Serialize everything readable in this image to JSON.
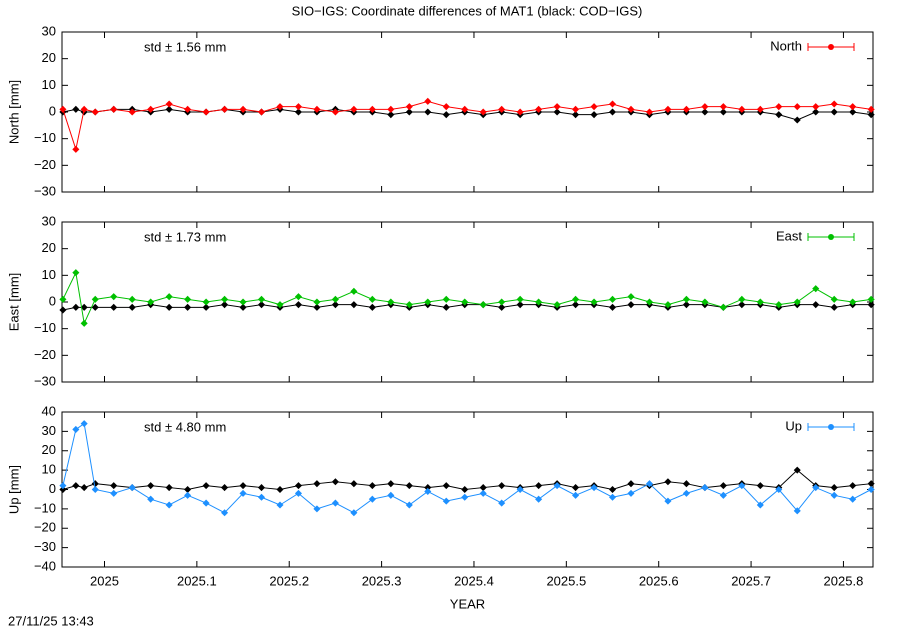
{
  "title": "SIO−IGS: Coordinate differences of MAT1 (black: COD−IGS)",
  "timestamp": "27/11/25 13:43",
  "chart_data": [
    {
      "type": "line",
      "ylabel": "North [mm]",
      "annotation": "std ± 1.56 mm",
      "legend": "upper right",
      "xlim": [
        2024.954,
        2025.832
      ],
      "xticks": [
        2025,
        2025.1,
        2025.2,
        2025.3,
        2025.4,
        2025.5,
        2025.6,
        2025.7,
        2025.8
      ],
      "ylim": [
        -30,
        30
      ],
      "yticks": [
        {
          "value": -30,
          "label": "−30"
        },
        {
          "value": -20,
          "label": "−20"
        },
        {
          "value": -10,
          "label": "−10"
        },
        0,
        10,
        20,
        30
      ],
      "x": [
        2024.955,
        2024.969,
        2024.978,
        2024.99,
        2025.01,
        2025.03,
        2025.05,
        2025.07,
        2025.09,
        2025.11,
        2025.13,
        2025.15,
        2025.17,
        2025.19,
        2025.21,
        2025.23,
        2025.25,
        2025.27,
        2025.29,
        2025.31,
        2025.33,
        2025.35,
        2025.37,
        2025.39,
        2025.41,
        2025.43,
        2025.45,
        2025.47,
        2025.49,
        2025.51,
        2025.53,
        2025.55,
        2025.57,
        2025.59,
        2025.61,
        2025.63,
        2025.65,
        2025.67,
        2025.69,
        2025.71,
        2025.73,
        2025.75,
        2025.77,
        2025.79,
        2025.81,
        2025.83
      ],
      "series": [
        {
          "color": "#000000",
          "values": [
            0,
            1,
            0,
            0,
            1,
            1,
            0,
            1,
            0,
            0,
            1,
            0,
            0,
            1,
            0,
            0,
            1,
            0,
            0,
            -1,
            0,
            0,
            -1,
            0,
            -1,
            0,
            -1,
            0,
            0,
            -1,
            -1,
            0,
            0,
            -1,
            0,
            0,
            0,
            0,
            0,
            0,
            -1,
            -3,
            0,
            0,
            0,
            -1
          ]
        },
        {
          "name": "North",
          "color": "#ff0000",
          "values": [
            1,
            -14,
            1,
            0,
            1,
            0,
            1,
            3,
            1,
            0,
            1,
            1,
            0,
            2,
            2,
            1,
            0,
            1,
            1,
            1,
            2,
            4,
            2,
            1,
            0,
            1,
            0,
            1,
            2,
            1,
            2,
            3,
            1,
            0,
            1,
            1,
            2,
            2,
            1,
            1,
            2,
            2,
            2,
            3,
            2,
            1
          ]
        }
      ]
    },
    {
      "type": "line",
      "ylabel": "East [mm]",
      "annotation": "std ± 1.73 mm",
      "legend": "upper right",
      "xlim": [
        2024.954,
        2025.832
      ],
      "xticks": [
        2025,
        2025.1,
        2025.2,
        2025.3,
        2025.4,
        2025.5,
        2025.6,
        2025.7,
        2025.8
      ],
      "ylim": [
        -30,
        30
      ],
      "yticks": [
        {
          "value": -30,
          "label": "−30"
        },
        {
          "value": -20,
          "label": "−20"
        },
        {
          "value": -10,
          "label": "−10"
        },
        0,
        10,
        20,
        30
      ],
      "x": [
        2024.955,
        2024.969,
        2024.978,
        2024.99,
        2025.01,
        2025.03,
        2025.05,
        2025.07,
        2025.09,
        2025.11,
        2025.13,
        2025.15,
        2025.17,
        2025.19,
        2025.21,
        2025.23,
        2025.25,
        2025.27,
        2025.29,
        2025.31,
        2025.33,
        2025.35,
        2025.37,
        2025.39,
        2025.41,
        2025.43,
        2025.45,
        2025.47,
        2025.49,
        2025.51,
        2025.53,
        2025.55,
        2025.57,
        2025.59,
        2025.61,
        2025.63,
        2025.65,
        2025.67,
        2025.69,
        2025.71,
        2025.73,
        2025.75,
        2025.77,
        2025.79,
        2025.81,
        2025.83
      ],
      "series": [
        {
          "color": "#000000",
          "values": [
            -3,
            -2,
            -2,
            -2,
            -2,
            -2,
            -1,
            -2,
            -2,
            -2,
            -1,
            -2,
            -1,
            -2,
            -1,
            -2,
            -1,
            -1,
            -2,
            -1,
            -2,
            -1,
            -2,
            -1,
            -1,
            -2,
            -1,
            -1,
            -2,
            -1,
            -1,
            -2,
            -1,
            -1,
            -2,
            -1,
            -1,
            -2,
            -1,
            -1,
            -2,
            -1,
            -1,
            -2,
            -1,
            -1
          ]
        },
        {
          "name": "East",
          "color": "#00c000",
          "values": [
            1,
            11,
            -8,
            1,
            2,
            1,
            0,
            2,
            1,
            0,
            1,
            0,
            1,
            -1,
            2,
            0,
            1,
            4,
            1,
            0,
            -1,
            0,
            1,
            0,
            -1,
            0,
            1,
            0,
            -1,
            1,
            0,
            1,
            2,
            0,
            -1,
            1,
            0,
            -2,
            1,
            0,
            -1,
            0,
            5,
            1,
            0,
            1
          ]
        }
      ]
    },
    {
      "type": "line",
      "ylabel": "Up [mm]",
      "annotation": "std ± 4.80 mm",
      "legend": "upper right",
      "xlabel": "YEAR",
      "xlim": [
        2024.954,
        2025.832
      ],
      "xticks": [
        2025,
        2025.1,
        2025.2,
        2025.3,
        2025.4,
        2025.5,
        2025.6,
        2025.7,
        2025.8
      ],
      "ylim": [
        -40,
        40
      ],
      "yticks": [
        {
          "value": -40,
          "label": "−40"
        },
        {
          "value": -30,
          "label": "−30"
        },
        {
          "value": -20,
          "label": "−20"
        },
        {
          "value": -10,
          "label": "−10"
        },
        0,
        10,
        20,
        30,
        40
      ],
      "x": [
        2024.955,
        2024.969,
        2024.978,
        2024.99,
        2025.01,
        2025.03,
        2025.05,
        2025.07,
        2025.09,
        2025.11,
        2025.13,
        2025.15,
        2025.17,
        2025.19,
        2025.21,
        2025.23,
        2025.25,
        2025.27,
        2025.29,
        2025.31,
        2025.33,
        2025.35,
        2025.37,
        2025.39,
        2025.41,
        2025.43,
        2025.45,
        2025.47,
        2025.49,
        2025.51,
        2025.53,
        2025.55,
        2025.57,
        2025.59,
        2025.61,
        2025.63,
        2025.65,
        2025.67,
        2025.69,
        2025.71,
        2025.73,
        2025.75,
        2025.77,
        2025.79,
        2025.81,
        2025.83
      ],
      "series": [
        {
          "color": "#000000",
          "values": [
            0,
            2,
            1,
            3,
            2,
            1,
            2,
            1,
            0,
            2,
            1,
            2,
            1,
            0,
            2,
            3,
            4,
            3,
            2,
            3,
            2,
            1,
            2,
            0,
            1,
            2,
            1,
            2,
            3,
            1,
            2,
            0,
            3,
            2,
            4,
            3,
            1,
            2,
            3,
            2,
            1,
            10,
            2,
            1,
            2,
            3
          ]
        },
        {
          "name": "Up",
          "color": "#1e90ff",
          "values": [
            2,
            31,
            34,
            0,
            -2,
            1,
            -5,
            -8,
            -3,
            -7,
            -12,
            -2,
            -4,
            -8,
            -2,
            -10,
            -7,
            -12,
            -5,
            -3,
            -8,
            -1,
            -6,
            -4,
            -2,
            -7,
            0,
            -5,
            2,
            -3,
            1,
            -4,
            -2,
            3,
            -6,
            -2,
            1,
            -3,
            2,
            -8,
            0,
            -11,
            1,
            -3,
            -5,
            0
          ]
        }
      ]
    }
  ]
}
